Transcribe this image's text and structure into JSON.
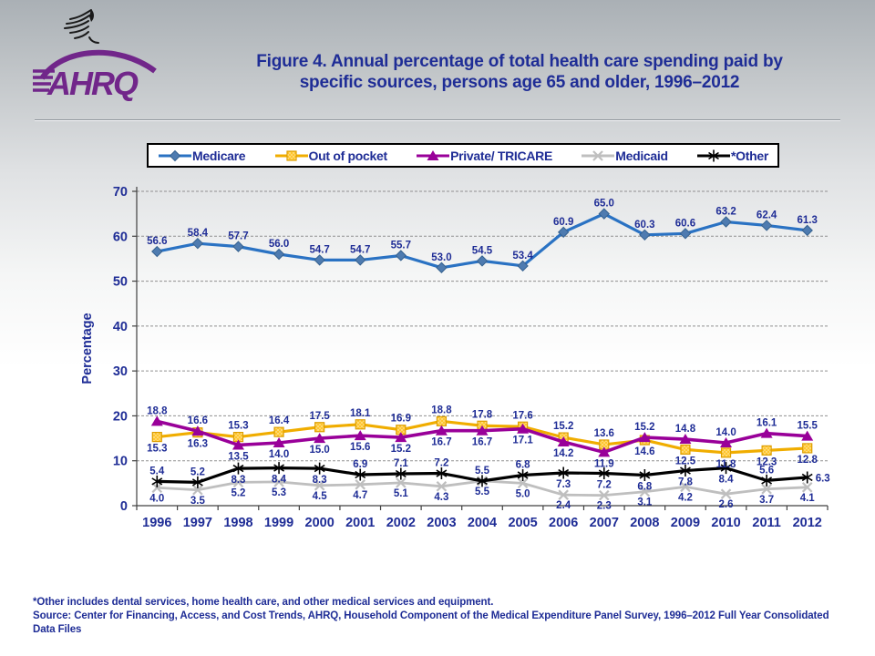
{
  "header": {
    "logo_text": "AHRQ",
    "title_line1": "Figure 4. Annual percentage of total health care spending paid by",
    "title_line2": "specific sources, persons age 65 and older, 1996–2012"
  },
  "colors": {
    "text_navy": "#1f2d96",
    "medicare_line": "#2a72c3",
    "medicare_marker": "#4e7bb0",
    "outofpocket_line": "#f0ad00",
    "outofpocket_marker": "#ffc62e",
    "private_line": "#990099",
    "medicaid_line": "#bfbfbf",
    "other_line": "#000000",
    "grid": "#909090",
    "axis": "#404040"
  },
  "chart_data": {
    "type": "line",
    "title": "",
    "xlabel": "",
    "ylabel": "Percentage",
    "ylim": [
      0,
      70
    ],
    "ytick_step": 10,
    "grid": "horizontal dashed",
    "legend_position": "top",
    "categories": [
      "1996",
      "1997",
      "1998",
      "1999",
      "2000",
      "2001",
      "2002",
      "2003",
      "2004",
      "2005",
      "2006",
      "2007",
      "2008",
      "2009",
      "2010",
      "2011",
      "2012"
    ],
    "series": [
      {
        "name": "Medicare",
        "marker": "diamond",
        "color": "#2a72c3",
        "marker_color": "#4e7bb0",
        "values": [
          56.6,
          58.4,
          57.7,
          56.0,
          54.7,
          54.7,
          55.7,
          53.0,
          54.5,
          53.4,
          60.9,
          65.0,
          60.3,
          60.6,
          63.2,
          62.4,
          61.3
        ],
        "label_pos": [
          "above",
          "above",
          "above",
          "above",
          "above",
          "above",
          "above",
          "above",
          "above",
          "above",
          "above",
          "above",
          "above",
          "above",
          "above",
          "above",
          "above"
        ]
      },
      {
        "name": "Out of pocket",
        "marker": "square",
        "color": "#f0ad00",
        "marker_color": "#ffc62e",
        "values": [
          15.3,
          16.3,
          15.3,
          16.4,
          17.5,
          18.1,
          16.9,
          18.8,
          17.8,
          17.6,
          15.2,
          13.6,
          14.6,
          12.5,
          11.8,
          12.3,
          12.8
        ],
        "label_pos": [
          "below",
          "below",
          "above",
          "above",
          "above",
          "above",
          "above",
          "above",
          "above",
          "above",
          "above",
          "above",
          "below",
          "below",
          "below",
          "below",
          "below"
        ]
      },
      {
        "name": "Private/ TRICARE",
        "marker": "triangle",
        "color": "#990099",
        "marker_color": "#990099",
        "values": [
          18.8,
          16.6,
          13.5,
          14.0,
          15.0,
          15.6,
          15.2,
          16.7,
          16.7,
          17.1,
          14.2,
          11.9,
          15.2,
          14.8,
          14.0,
          16.1,
          15.5
        ],
        "label_pos": [
          "above",
          "above",
          "below",
          "below",
          "below",
          "below",
          "below",
          "below",
          "below",
          "below",
          "below",
          "below",
          "above",
          "above",
          "above",
          "above",
          "above"
        ]
      },
      {
        "name": "Medicaid",
        "marker": "x",
        "color": "#bfbfbf",
        "marker_color": "#bfbfbf",
        "values": [
          4.0,
          3.5,
          5.2,
          5.3,
          4.5,
          4.7,
          5.1,
          4.3,
          5.5,
          5.0,
          2.4,
          2.3,
          3.1,
          4.2,
          2.6,
          3.7,
          4.1
        ],
        "label_pos": [
          "below",
          "below",
          "below",
          "below",
          "below",
          "below",
          "below",
          "below",
          "below",
          "below",
          "below",
          "below",
          "below",
          "below",
          "below",
          "below",
          "below"
        ]
      },
      {
        "name": "*Other",
        "marker": "asterisk",
        "color": "#000000",
        "marker_color": "#000000",
        "values": [
          5.4,
          5.2,
          8.3,
          8.4,
          8.3,
          6.9,
          7.1,
          7.2,
          5.5,
          6.8,
          7.3,
          7.2,
          6.8,
          7.8,
          8.4,
          5.6,
          6.3
        ],
        "label_pos": [
          "above",
          "above",
          "below",
          "below",
          "below",
          "above",
          "above",
          "above",
          "above",
          "above",
          "below",
          "below",
          "below",
          "below",
          "below",
          "above",
          "right"
        ]
      }
    ]
  },
  "footer": {
    "note": "*Other includes dental services, home health care, and other medical services and equipment.",
    "source_line1": "Source: Center for Financing, Access, and Cost Trends, AHRQ, Household Component of the Medical Expenditure Panel Survey,  1996–2012 Full Year Consolidated",
    "source_line2": "Data Files"
  }
}
